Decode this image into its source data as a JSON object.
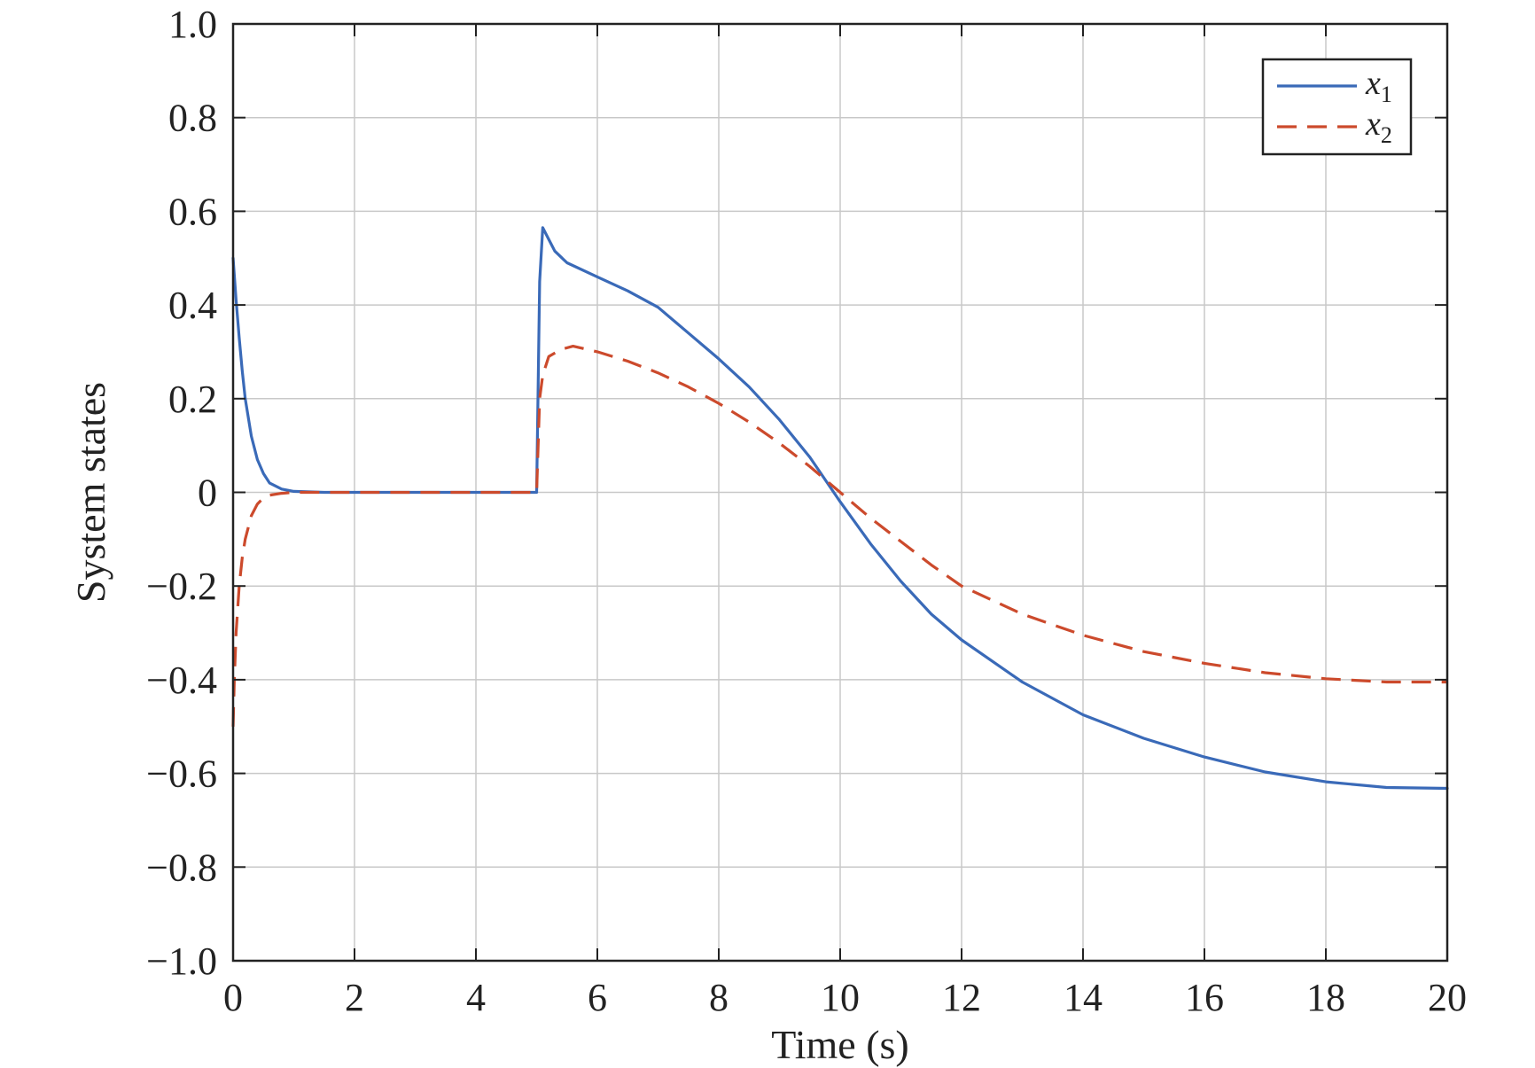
{
  "chart_data": {
    "type": "line",
    "title": "",
    "xlabel": "Time (s)",
    "ylabel": "System states",
    "xlim": [
      0,
      20
    ],
    "ylim": [
      -1.0,
      1.0
    ],
    "xticks": [
      0,
      2,
      4,
      6,
      8,
      10,
      12,
      14,
      16,
      18,
      20
    ],
    "xtick_labels": [
      "0",
      "2",
      "4",
      "6",
      "8",
      "10",
      "12",
      "14",
      "16",
      "18",
      "20"
    ],
    "yticks": [
      1.0,
      0.8,
      0.6,
      0.4,
      0.2,
      0,
      -0.2,
      -0.4,
      -0.6,
      -0.8,
      -1.0
    ],
    "ytick_labels": [
      "1.0",
      "0.8",
      "0.6",
      "0.4",
      "0.2",
      "0",
      "−0.2",
      "−0.4",
      "−0.6",
      "−0.8",
      "−1.0"
    ],
    "grid": true,
    "legend_position": "top-right",
    "series": [
      {
        "name": "x1",
        "legend_base": "x",
        "legend_sub": "1",
        "color": "#3a6ab8",
        "style": "solid",
        "x": [
          0,
          0.05,
          0.1,
          0.15,
          0.2,
          0.3,
          0.4,
          0.5,
          0.6,
          0.8,
          1.0,
          1.5,
          2,
          3,
          4,
          5.0,
          5.05,
          5.1,
          5.2,
          5.3,
          5.5,
          6.0,
          6.5,
          7.0,
          7.5,
          8.0,
          8.5,
          9.0,
          9.5,
          10.0,
          10.5,
          11.0,
          11.5,
          12.0,
          13.0,
          14.0,
          15.0,
          16.0,
          17.0,
          18.0,
          19.0,
          20.0
        ],
        "y": [
          0.5,
          0.41,
          0.33,
          0.26,
          0.2,
          0.12,
          0.07,
          0.04,
          0.02,
          0.007,
          0.002,
          0,
          0,
          0,
          0,
          0,
          0.45,
          0.565,
          0.54,
          0.515,
          0.49,
          0.46,
          0.43,
          0.395,
          0.34,
          0.285,
          0.225,
          0.155,
          0.075,
          -0.02,
          -0.11,
          -0.19,
          -0.26,
          -0.315,
          -0.405,
          -0.475,
          -0.525,
          -0.565,
          -0.597,
          -0.618,
          -0.63,
          -0.632
        ]
      },
      {
        "name": "x2",
        "legend_base": "x",
        "legend_sub": "2",
        "color": "#cc4a2c",
        "style": "dashed",
        "x": [
          0,
          0.02,
          0.05,
          0.1,
          0.15,
          0.2,
          0.3,
          0.4,
          0.5,
          0.6,
          0.8,
          1.0,
          1.5,
          2,
          3,
          4,
          5.0,
          5.05,
          5.1,
          5.2,
          5.4,
          5.6,
          6.0,
          6.5,
          7.0,
          7.5,
          8.0,
          8.5,
          9.0,
          9.5,
          10.0,
          10.5,
          11.0,
          11.5,
          12.0,
          13.0,
          14.0,
          15.0,
          16.0,
          17.0,
          18.0,
          19.0,
          20.0
        ],
        "y": [
          -0.5,
          -0.4,
          -0.3,
          -0.2,
          -0.14,
          -0.1,
          -0.05,
          -0.025,
          -0.012,
          -0.006,
          -0.002,
          0,
          0,
          0,
          0,
          0,
          0,
          0.2,
          0.25,
          0.29,
          0.305,
          0.312,
          0.3,
          0.28,
          0.255,
          0.225,
          0.19,
          0.15,
          0.105,
          0.055,
          0.0,
          -0.055,
          -0.105,
          -0.155,
          -0.2,
          -0.26,
          -0.305,
          -0.34,
          -0.365,
          -0.385,
          -0.398,
          -0.405,
          -0.405
        ]
      }
    ]
  }
}
